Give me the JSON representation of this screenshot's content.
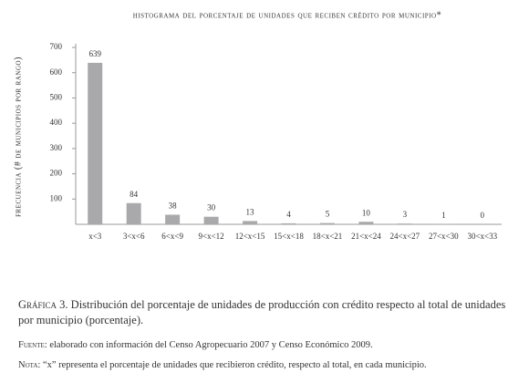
{
  "chart_data": {
    "type": "bar",
    "title": "histograma del porcentaje de unidades que reciben crédito por municipio*",
    "y_label": "frecuencia (# de municipios por rango)",
    "categories": [
      "x<3",
      "3<x<6",
      "6<x<9",
      "9<x<12",
      "12<x<15",
      "15<x<18",
      "18<x<21",
      "21<x<24",
      "24<x<27",
      "27<x<30",
      "30<x<33"
    ],
    "values": [
      639,
      84,
      38,
      30,
      13,
      4,
      5,
      10,
      3,
      1,
      0
    ],
    "color": "#a9a9ab",
    "ylim": [
      0,
      700
    ],
    "yticks": [
      100,
      200,
      300,
      400,
      500,
      600,
      700
    ]
  },
  "caption": {
    "label": "Gráfica 3.",
    "text": "Distribución del porcentaje de unidades de producción con crédito respecto al total de unidades por municipio (porcentaje)."
  },
  "source": {
    "label": "Fuente:",
    "text": "elaborado con información del Censo Agropecuario 2007 y Censo Económico 2009."
  },
  "note": {
    "label": "Nota:",
    "text": "“x” representa el porcentaje de unidades que recibieron crédito, respecto al total, en cada municipio."
  }
}
